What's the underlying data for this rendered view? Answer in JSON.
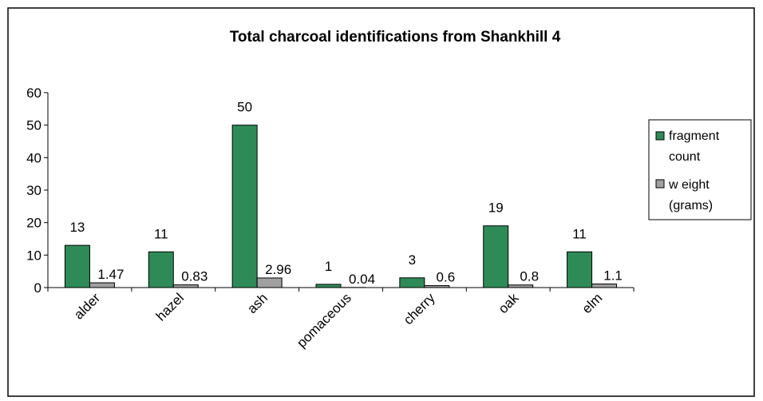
{
  "chart_data": {
    "type": "bar",
    "title": "Total charcoal identifications from Shankhill 4",
    "categories": [
      "alder",
      "hazel",
      "ash",
      "pomaceous",
      "cherry",
      "oak",
      "elm"
    ],
    "series": [
      {
        "name": "fragment count",
        "legend_lines": [
          "fragment",
          "count"
        ],
        "color": "#2e8b57",
        "values": [
          13,
          11,
          50,
          1,
          3,
          19,
          11
        ],
        "labels": [
          "13",
          "11",
          "50",
          "1",
          "3",
          "19",
          "11"
        ]
      },
      {
        "name": "weight (grams)",
        "legend_lines": [
          "w eight",
          "(grams)"
        ],
        "color": "#a0a0a0",
        "values": [
          1.47,
          0.83,
          2.96,
          0.04,
          0.6,
          0.8,
          1.1
        ],
        "labels": [
          "1.47",
          "0.83",
          "2.96",
          "0.04",
          "0.6",
          "0.8",
          "1.1"
        ]
      }
    ],
    "yticks": [
      "0",
      "10",
      "20",
      "30",
      "40",
      "50",
      "60"
    ],
    "ylim": [
      0,
      60
    ],
    "xlabel": "",
    "ylabel": "",
    "grid": false,
    "legend_position": "right"
  }
}
